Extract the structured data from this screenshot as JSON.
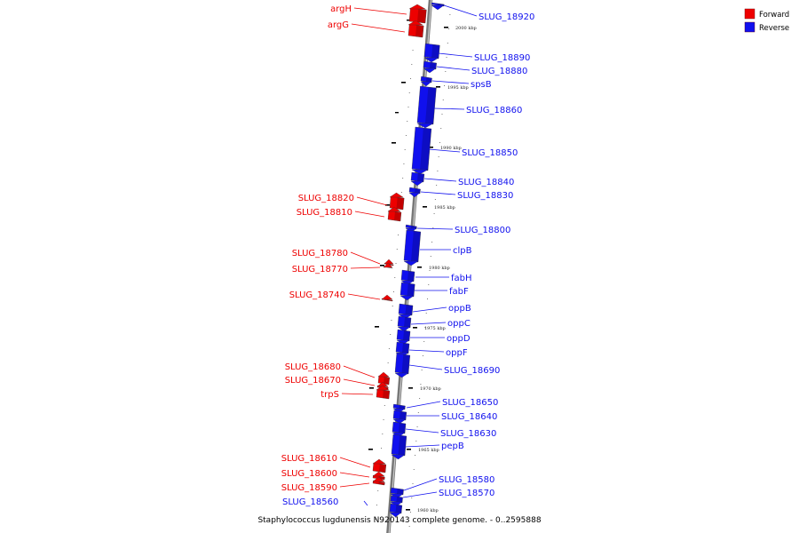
{
  "caption": "Staphylococcus lugdunensis N920143 complete genome. - 0..2595888",
  "legend": [
    {
      "label": "Forward",
      "color": "#ee0000"
    },
    {
      "label": "Reverse",
      "color": "#1010ee"
    }
  ],
  "colors": {
    "forward": "#ee0000",
    "reverse": "#1010ee",
    "backbone": "#888888"
  },
  "ruler_ticks": [
    "2000 kbp",
    "1995 kbp",
    "1990 kbp",
    "1985 kbp",
    "1980 kbp",
    "1975 kbp",
    "1970 kbp",
    "1965 kbp",
    "1960 kbp"
  ],
  "genes_forward": [
    "argH",
    "argG",
    "SLUG_18820",
    "SLUG_18810",
    "SLUG_18780",
    "SLUG_18770",
    "SLUG_18740",
    "SLUG_18680",
    "SLUG_18670",
    "trpS",
    "SLUG_18610",
    "SLUG_18600",
    "SLUG_18590"
  ],
  "genes_reverse": [
    "SLUG_18920",
    "SLUG_18890",
    "SLUG_18880",
    "spsB",
    "SLUG_18860",
    "SLUG_18850",
    "SLUG_18840",
    "SLUG_18830",
    "SLUG_18800",
    "clpB",
    "fabH",
    "fabF",
    "oppB",
    "oppC",
    "oppD",
    "oppF",
    "SLUG_18690",
    "SLUG_18650",
    "SLUG_18640",
    "SLUG_18630",
    "pepB",
    "SLUG_18580",
    "SLUG_18570",
    "SLUG_18560"
  ]
}
